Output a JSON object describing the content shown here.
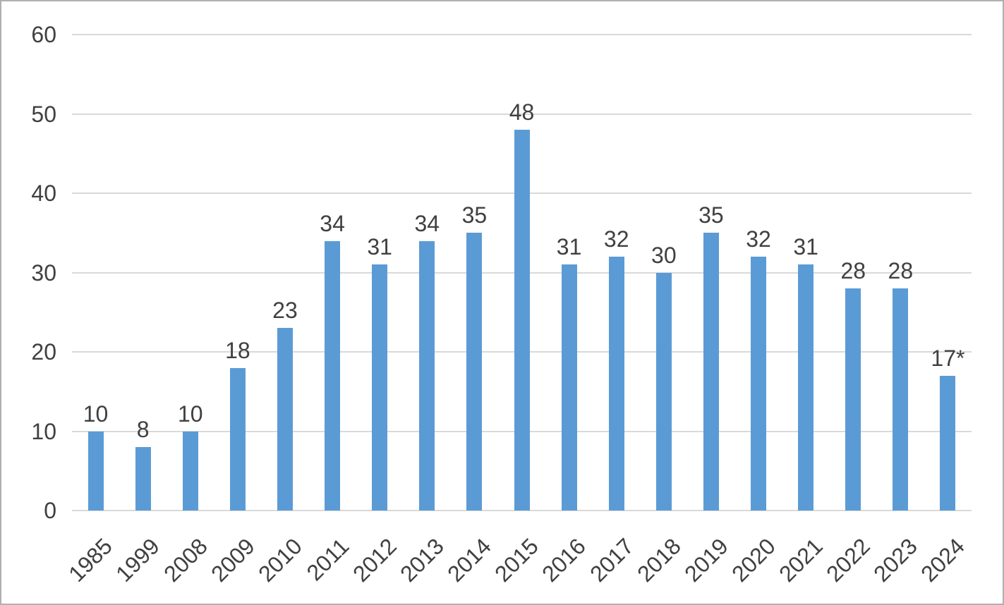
{
  "chart_data": {
    "type": "bar",
    "categories": [
      "1985",
      "1999",
      "2008",
      "2009",
      "2010",
      "2011",
      "2012",
      "2013",
      "2014",
      "2015",
      "2016",
      "2017",
      "2018",
      "2019",
      "2020",
      "2021",
      "2022",
      "2023",
      "2024"
    ],
    "values": [
      10,
      8,
      10,
      18,
      23,
      34,
      31,
      34,
      35,
      48,
      31,
      32,
      30,
      35,
      32,
      31,
      28,
      28,
      17
    ],
    "value_labels": [
      "10",
      "8",
      "10",
      "18",
      "23",
      "34",
      "31",
      "34",
      "35",
      "48",
      "31",
      "32",
      "30",
      "35",
      "32",
      "31",
      "28",
      "28",
      "17*"
    ],
    "title": "",
    "xlabel": "",
    "ylabel": "",
    "ylim": [
      0,
      60
    ],
    "y_ticks": [
      0,
      10,
      20,
      30,
      40,
      50,
      60
    ],
    "grid": true,
    "legend": "none"
  },
  "colors": {
    "bar": "#5b9bd5",
    "gridline": "#d9d9d9",
    "axis_text": "#404040",
    "frame_border": "#b0b0b0",
    "background": "#ffffff"
  }
}
